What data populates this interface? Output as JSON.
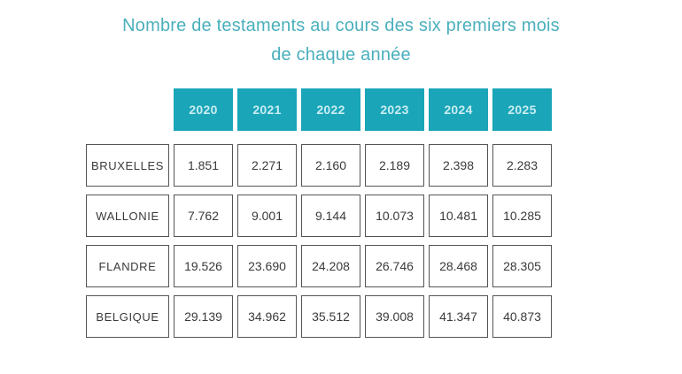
{
  "title": {
    "line1": "Nombre de testaments au cours des six premiers mois",
    "line2": "de chaque année"
  },
  "table": {
    "years": [
      "2020",
      "2021",
      "2022",
      "2023",
      "2024",
      "2025"
    ],
    "rows": [
      {
        "label": "BRUXELLES",
        "values": [
          "1.851",
          "2.271",
          "2.160",
          "2.189",
          "2.398",
          "2.283"
        ]
      },
      {
        "label": "WALLONIE",
        "values": [
          "7.762",
          "9.001",
          "9.144",
          "10.073",
          "10.481",
          "10.285"
        ]
      },
      {
        "label": "FLANDRE",
        "values": [
          "19.526",
          "23.690",
          "24.208",
          "26.746",
          "28.468",
          "28.305"
        ]
      },
      {
        "label": "BELGIQUE",
        "values": [
          "29.139",
          "34.962",
          "35.512",
          "39.008",
          "41.347",
          "40.873"
        ]
      }
    ]
  },
  "colors": {
    "accent": "#1aa5b8",
    "title_text": "#4aafbc",
    "year_header_text": "#c9edf2",
    "cell_border": "#545454",
    "cell_text": "#3a3a3a",
    "background": "#ffffff"
  },
  "chart_data": {
    "type": "table",
    "title": "Nombre de testaments au cours des six premiers mois de chaque année",
    "categories": [
      "2020",
      "2021",
      "2022",
      "2023",
      "2024",
      "2025"
    ],
    "series": [
      {
        "name": "BRUXELLES",
        "values": [
          1851,
          2271,
          2160,
          2189,
          2398,
          2283
        ]
      },
      {
        "name": "WALLONIE",
        "values": [
          7762,
          9001,
          9144,
          10073,
          10481,
          10285
        ]
      },
      {
        "name": "FLANDRE",
        "values": [
          19526,
          23690,
          24208,
          26746,
          28468,
          28305
        ]
      },
      {
        "name": "BELGIQUE",
        "values": [
          29139,
          34962,
          35512,
          39008,
          41347,
          40873
        ]
      }
    ],
    "notes": "Values use period as thousands separator in the rendered table."
  }
}
